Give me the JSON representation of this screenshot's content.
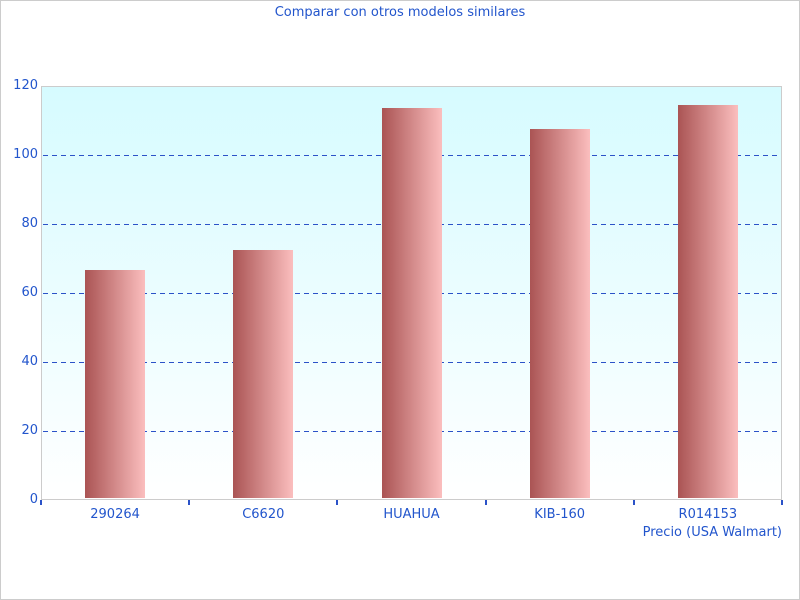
{
  "chart_data": {
    "type": "bar",
    "title": "Comparar con otros modelos similares",
    "categories": [
      "290264",
      "C6620",
      "HUAHUA",
      "KIB-160",
      "R014153"
    ],
    "values": [
      66,
      72,
      113,
      107,
      114
    ],
    "xlabel": "Precio (USA Walmart)",
    "ylabel": "",
    "ylim": [
      0,
      120
    ],
    "yticks": [
      0,
      20,
      40,
      60,
      80,
      100,
      120
    ],
    "grid": "dashed-horizontal",
    "legend": "none",
    "colors": {
      "text_blue": "#2255cc",
      "gridline_blue": "#2b52c8",
      "tick_blue": "#2b52c8",
      "bar_gradient_left": "#aa5454",
      "bar_gradient_right": "#fbbebe",
      "plot_bg_top": "#d6fbff",
      "plot_bg_bottom": "#ffffff",
      "plot_border": "#cccccc",
      "figure_bg": "#ffffff"
    }
  }
}
